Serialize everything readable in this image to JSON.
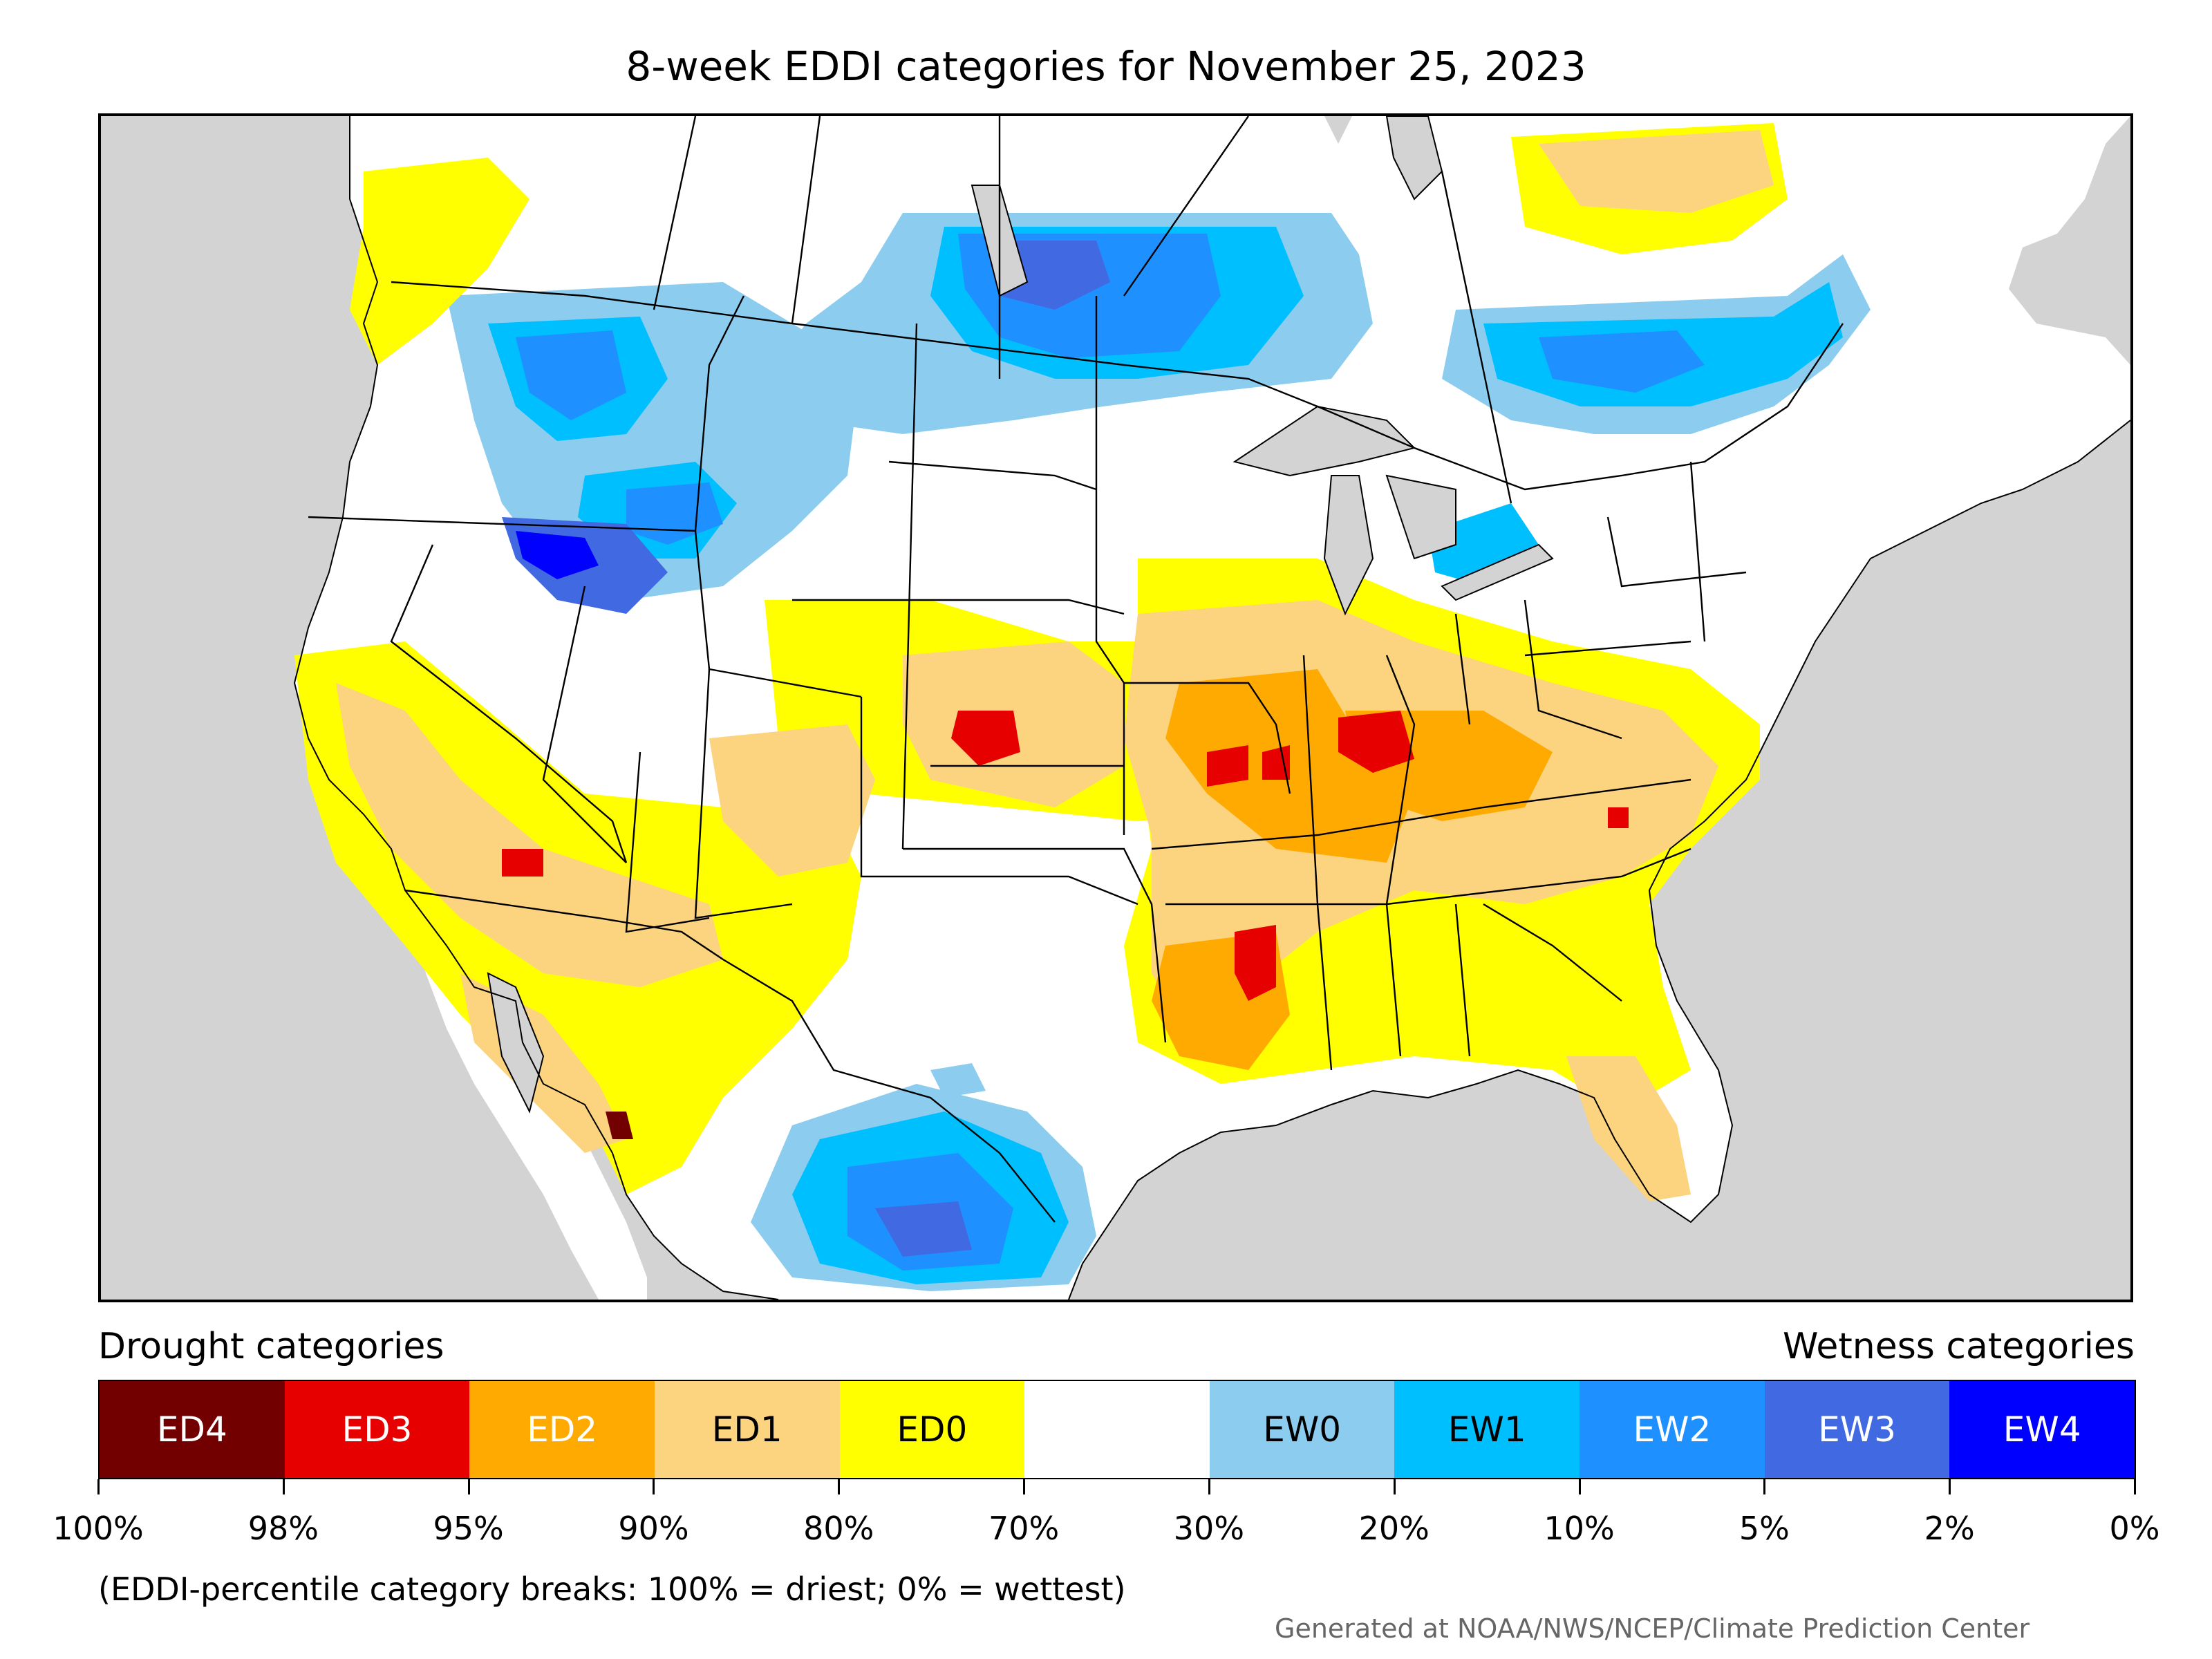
{
  "title": "8-week EDDI categories for November 25, 2023",
  "legend": {
    "drought_label": "Drought categories",
    "wetness_label": "Wetness categories",
    "categories": [
      {
        "label": "ED4",
        "color": "#730000",
        "text_color": "#ffffff"
      },
      {
        "label": "ED3",
        "color": "#e60000",
        "text_color": "#ffffff"
      },
      {
        "label": "ED2",
        "color": "#ffaa00",
        "text_color": "#ffffff"
      },
      {
        "label": "ED1",
        "color": "#fcd37f",
        "text_color": "#000000"
      },
      {
        "label": "ED0",
        "color": "#ffff00",
        "text_color": "#000000"
      },
      {
        "label": "",
        "color": "#ffffff",
        "text_color": "#000000"
      },
      {
        "label": "EW0",
        "color": "#8ccdef",
        "text_color": "#000000"
      },
      {
        "label": "EW1",
        "color": "#00bfff",
        "text_color": "#000000"
      },
      {
        "label": "EW2",
        "color": "#1e90ff",
        "text_color": "#ffffff"
      },
      {
        "label": "EW3",
        "color": "#4169e1",
        "text_color": "#ffffff"
      },
      {
        "label": "EW4",
        "color": "#0000ff",
        "text_color": "#ffffff"
      }
    ],
    "ticks": [
      "100%",
      "98%",
      "95%",
      "90%",
      "80%",
      "70%",
      "30%",
      "20%",
      "10%",
      "5%",
      "2%",
      "0%"
    ]
  },
  "note": "(EDDI-percentile category breaks: 100% = driest; 0% = wettest)",
  "credit": "Generated at NOAA/NWS/NCEP/Climate Prediction Center",
  "map": {
    "background_color": "#d3d3d3",
    "land_color": "#ffffff",
    "border_color": "#000000"
  }
}
